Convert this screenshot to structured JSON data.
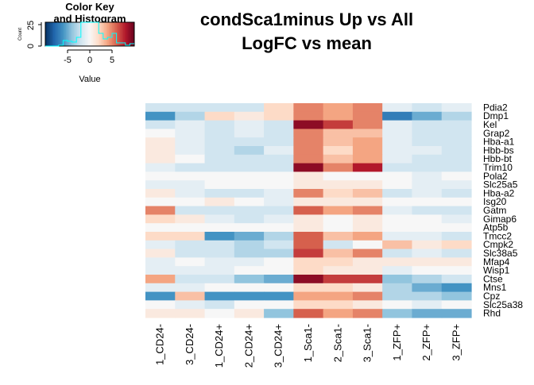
{
  "chart_data": {
    "type": "heatmap",
    "title_lines": [
      "condSca1minus Up vs All",
      "LogFC vs mean"
    ],
    "rows": [
      "Pdia2",
      "Dmp1",
      "Kel",
      "Grap2",
      "Hba-a1",
      "Hbb-bs",
      "Hbb-bt",
      "Trim10",
      "Pola2",
      "Slc25a5",
      "Hba-a2",
      "Isg20",
      "Gatm",
      "Gimap6",
      "Atp5b",
      "Tmcc2",
      "Cmpk2",
      "Slc38a5",
      "Mfap4",
      "Wisp1",
      "Ctse",
      "Mns1",
      "Cpz",
      "Slc25a38",
      "Rhd"
    ],
    "columns": [
      "1_CD24-",
      "3_CD24-",
      "1_CD24+",
      "2_CD24+",
      "3_CD24+",
      "1_Sca1-",
      "2_Sca1-",
      "3_Sca1-",
      "1_ZFP+",
      "2_ZFP+",
      "3_ZFP+"
    ],
    "values": [
      [
        -2,
        -2,
        -2,
        -2,
        2,
        5,
        4,
        5,
        -1,
        -2,
        -1
      ],
      [
        -6,
        -3,
        2,
        1,
        2,
        5,
        4,
        5,
        -7,
        -5,
        -3
      ],
      [
        -2,
        -1,
        -2,
        -1,
        -2,
        9,
        7,
        5,
        -1,
        -2,
        -2
      ],
      [
        0,
        -1,
        -2,
        -1,
        -2,
        5,
        3,
        3,
        -1,
        -2,
        -2
      ],
      [
        1,
        -1,
        -2,
        -2,
        -2,
        5,
        3,
        4,
        -1,
        -2,
        -2
      ],
      [
        1,
        -1,
        -2,
        -3,
        -1,
        5,
        2,
        4,
        -1,
        -1,
        -2
      ],
      [
        1,
        0,
        -2,
        -2,
        -2,
        5,
        3,
        4,
        -1,
        -2,
        -2
      ],
      [
        -1,
        -2,
        -2,
        -2,
        -2,
        9,
        5,
        8,
        -2,
        -2,
        -2
      ],
      [
        0,
        0,
        0,
        0,
        0,
        1,
        0,
        0,
        0,
        -1,
        0
      ],
      [
        -1,
        -1,
        0,
        0,
        0,
        1,
        1,
        1,
        0,
        -1,
        -1
      ],
      [
        1,
        -1,
        -2,
        -2,
        -1,
        5,
        2,
        3,
        -2,
        -1,
        -2
      ],
      [
        0,
        0,
        1,
        0,
        -1,
        1,
        1,
        1,
        0,
        0,
        0
      ],
      [
        5,
        -2,
        -2,
        -2,
        -2,
        6,
        4,
        5,
        -1,
        -2,
        -2
      ],
      [
        2,
        1,
        -1,
        -2,
        -1,
        1,
        0,
        1,
        0,
        0,
        -1
      ],
      [
        0,
        0,
        0,
        0,
        0,
        1,
        0,
        1,
        0,
        0,
        0
      ],
      [
        2,
        2,
        -6,
        -5,
        -3,
        6,
        3,
        4,
        -1,
        -1,
        -2
      ],
      [
        -1,
        -2,
        -2,
        -3,
        -2,
        6,
        -2,
        0,
        3,
        1,
        2
      ],
      [
        1,
        -2,
        -2,
        -3,
        -3,
        7,
        3,
        5,
        -2,
        -1,
        -2
      ],
      [
        -1,
        0,
        -1,
        -1,
        0,
        2,
        2,
        1,
        1,
        1,
        1
      ],
      [
        -1,
        -1,
        -1,
        0,
        0,
        2,
        1,
        1,
        -1,
        0,
        0
      ],
      [
        4,
        -2,
        -2,
        -4,
        -5,
        9,
        7,
        7,
        -4,
        -3,
        -2
      ],
      [
        -1,
        -1,
        0,
        0,
        0,
        2,
        2,
        1,
        -3,
        -5,
        -6
      ],
      [
        -6,
        3,
        -6,
        -6,
        -6,
        4,
        4,
        5,
        -3,
        -3,
        -4
      ],
      [
        0,
        -1,
        -2,
        0,
        0,
        2,
        2,
        1,
        0,
        -1,
        0
      ],
      [
        1,
        1,
        0,
        1,
        -4,
        6,
        4,
        5,
        -4,
        -5,
        -5
      ]
    ],
    "color_key": {
      "title_lines": [
        "Color Key",
        "and Histogram"
      ],
      "x_label": "Value",
      "y_label": "Count",
      "x_ticks": [
        -5,
        0,
        5
      ],
      "y_ticks": [
        0,
        25
      ],
      "range": [
        -10,
        10
      ],
      "colormap": [
        "#053061",
        "#2166ac",
        "#4393c3",
        "#92c5de",
        "#d1e5f0",
        "#f7f7f7",
        "#fddbc7",
        "#f4a582",
        "#d6604d",
        "#b2182b",
        "#67001f"
      ],
      "histogram_color": "#00ffff"
    }
  }
}
